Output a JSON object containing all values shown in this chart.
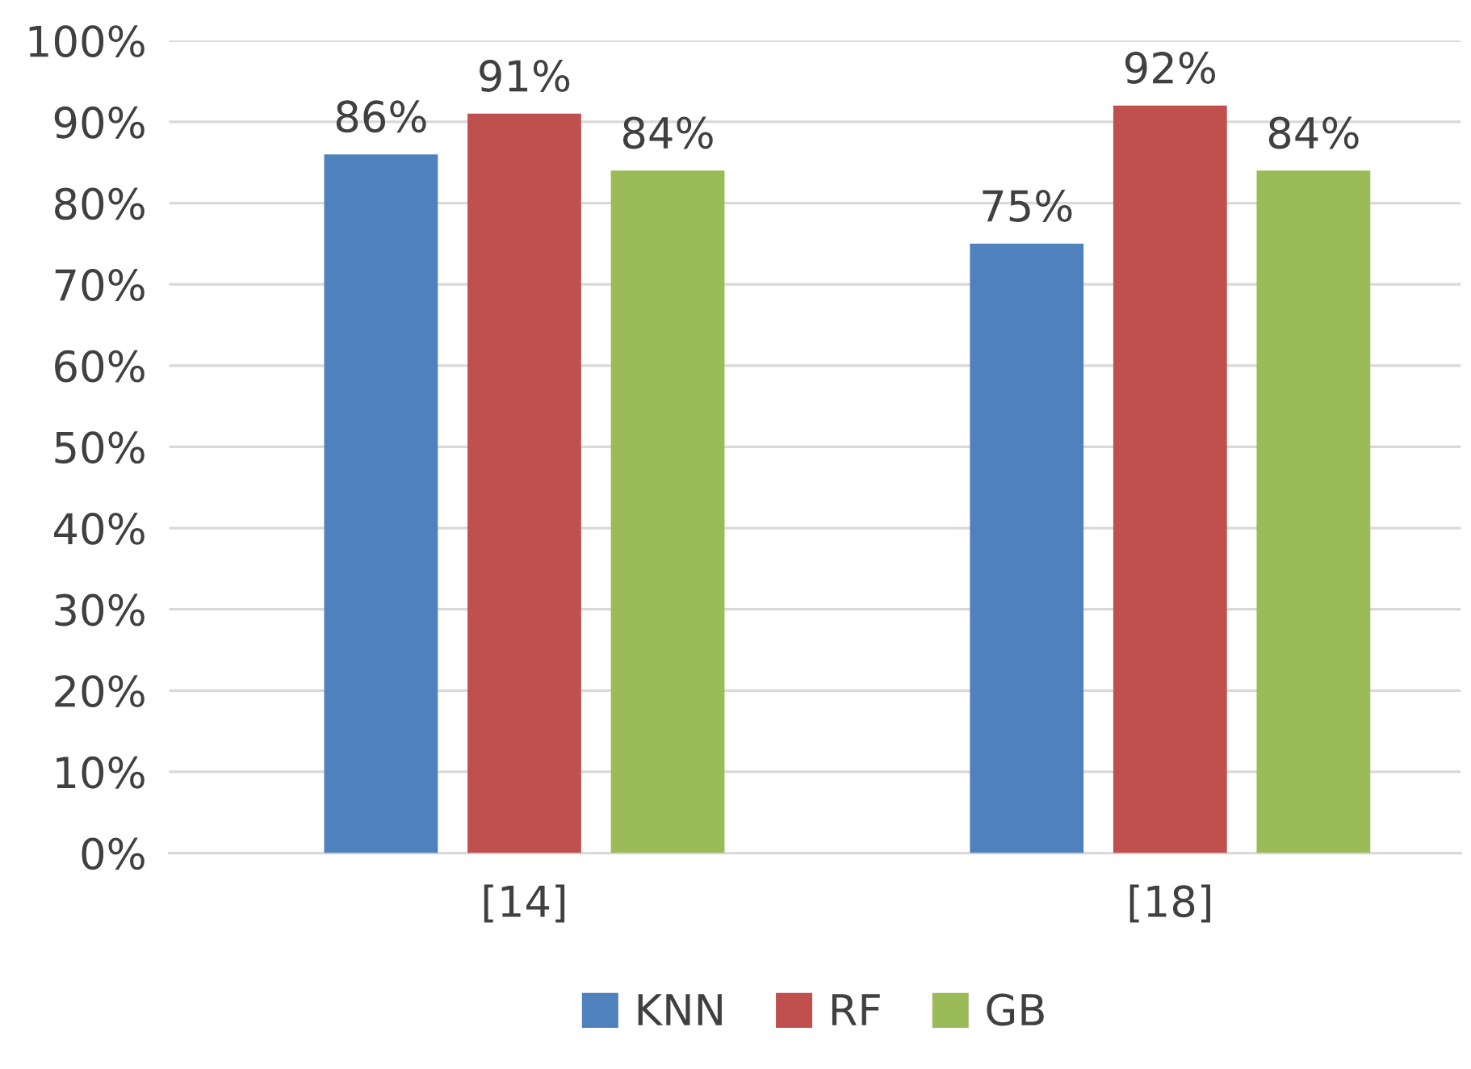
{
  "chart_data": {
    "type": "bar",
    "categories": [
      "[14]",
      "[18]"
    ],
    "series": [
      {
        "name": "KNN",
        "color": "#4f81bd",
        "values": [
          86,
          75
        ],
        "value_labels": [
          "86%",
          "75%"
        ]
      },
      {
        "name": "RF",
        "color": "#c0504d",
        "values": [
          91,
          92
        ],
        "value_labels": [
          "91%",
          "92%"
        ]
      },
      {
        "name": "GB",
        "color": "#9bbb59",
        "values": [
          84,
          84
        ],
        "value_labels": [
          "84%",
          "84%"
        ]
      }
    ],
    "ylim": [
      0,
      100
    ],
    "yticks": [
      {
        "value": 0,
        "label": "0%"
      },
      {
        "value": 10,
        "label": "10%"
      },
      {
        "value": 20,
        "label": "20%"
      },
      {
        "value": 30,
        "label": "30%"
      },
      {
        "value": 40,
        "label": "40%"
      },
      {
        "value": 50,
        "label": "50%"
      },
      {
        "value": 60,
        "label": "60%"
      },
      {
        "value": 70,
        "label": "70%"
      },
      {
        "value": 80,
        "label": "80%"
      },
      {
        "value": 90,
        "label": "90%"
      },
      {
        "value": 100,
        "label": "100%"
      }
    ],
    "grid": "y",
    "legend": "bottom"
  }
}
